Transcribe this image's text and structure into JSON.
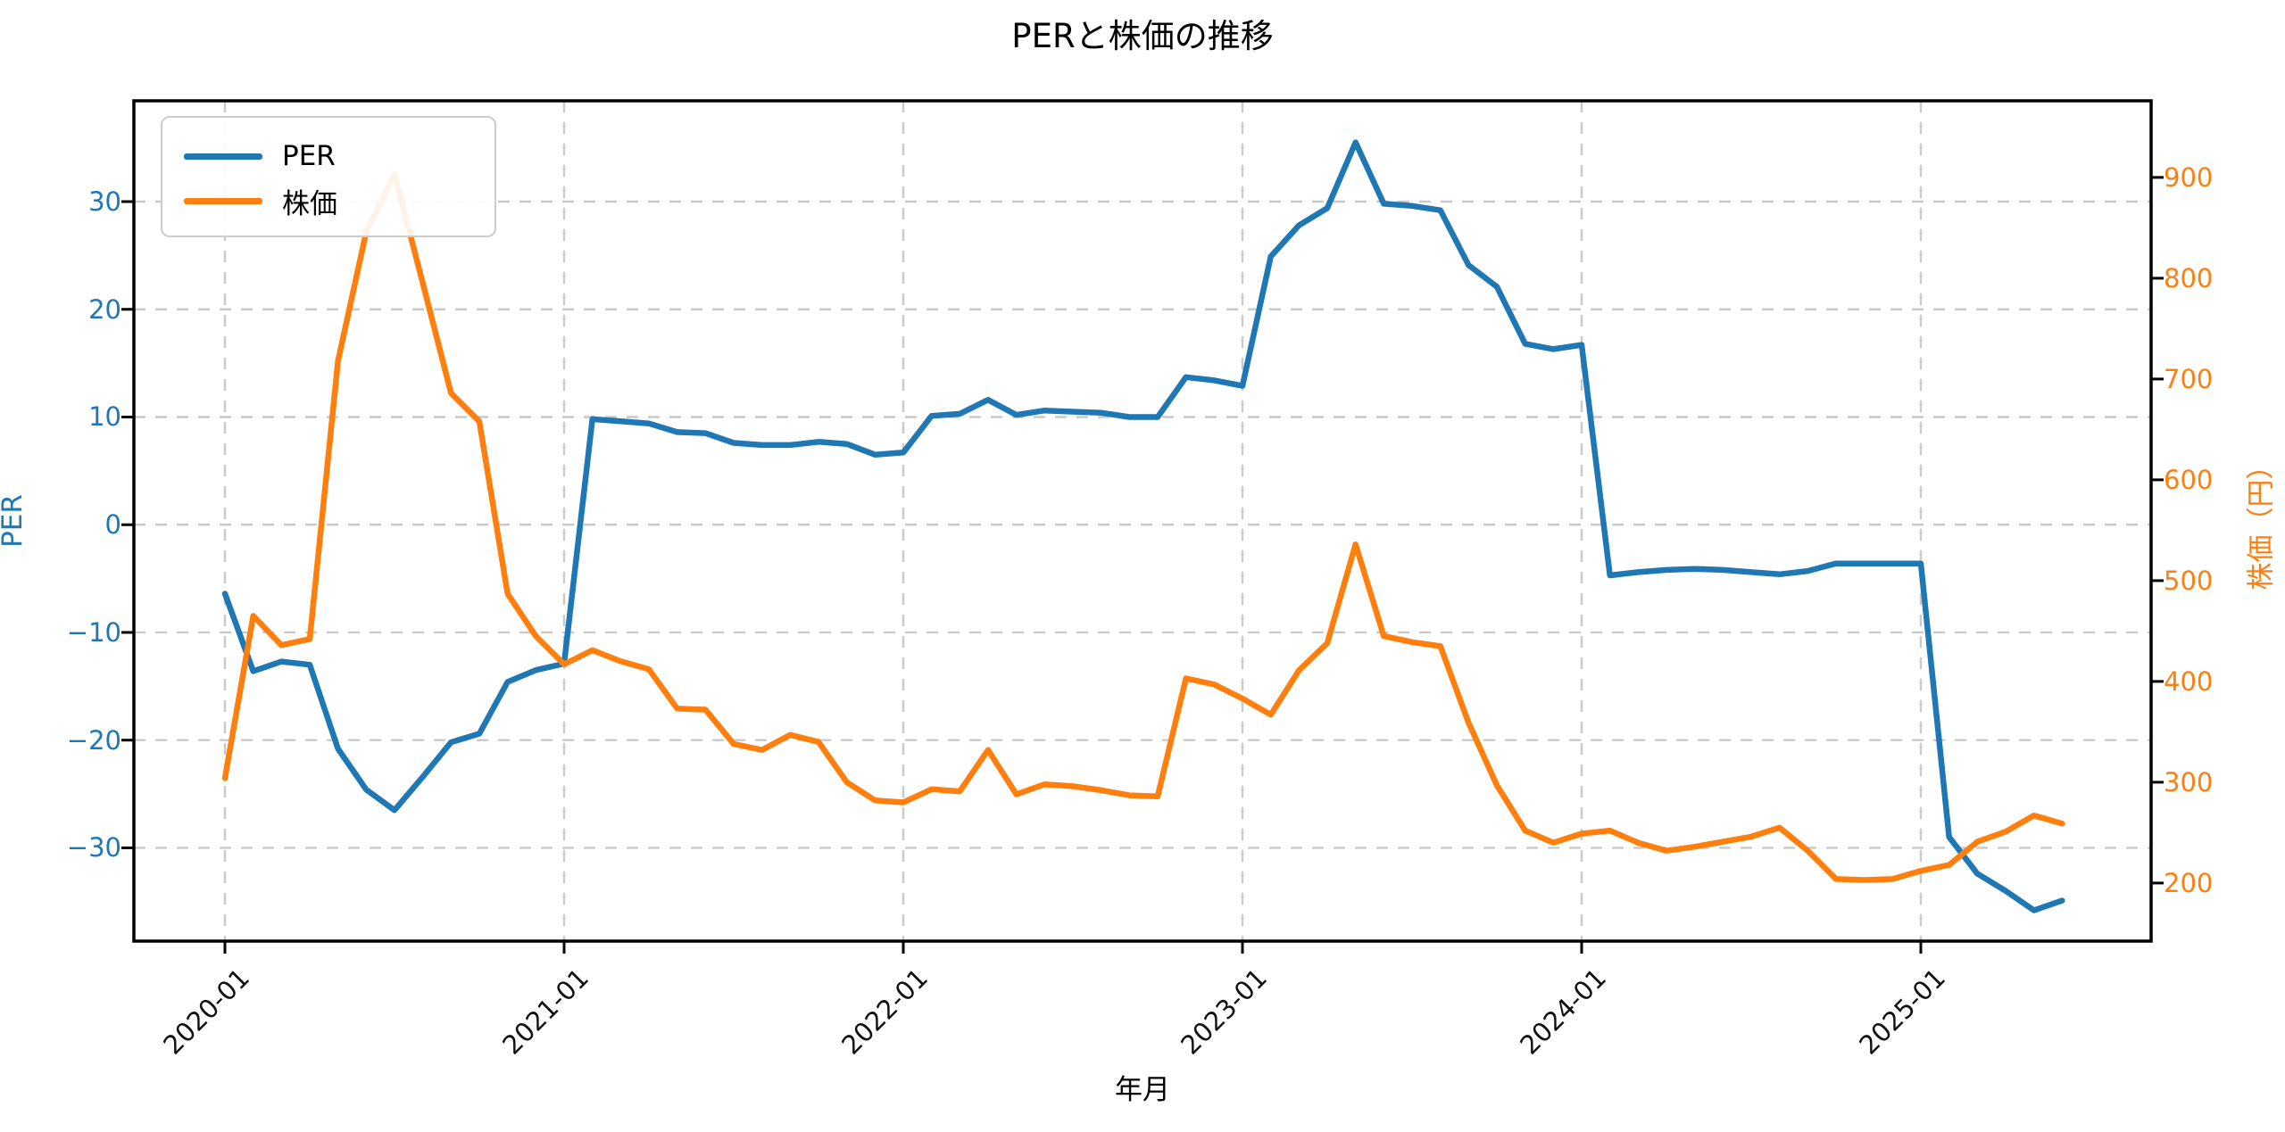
{
  "title": "PERと株価の推移",
  "xlabel": "年月",
  "ylabel_left": "PER",
  "ylabel_right": "株価（円）",
  "colors": {
    "per_line": "#1f77b4",
    "price_line": "#ff7f0e",
    "grid": "#c9c9c9",
    "spine": "#000000"
  },
  "legend": [
    {
      "label": "PER",
      "color": "#1f77b4"
    },
    {
      "label": "株価",
      "color": "#ff7f0e"
    }
  ],
  "axes": {
    "left_ticks": [
      {
        "label": "30",
        "value": 30
      },
      {
        "label": "20",
        "value": 20
      },
      {
        "label": "10",
        "value": 10
      },
      {
        "label": "0",
        "value": 0
      },
      {
        "label": "−10",
        "value": -10
      },
      {
        "label": "−20",
        "value": -20
      },
      {
        "label": "−30",
        "value": -30
      }
    ],
    "right_ticks": [
      {
        "label": "900",
        "value": 900
      },
      {
        "label": "800",
        "value": 800
      },
      {
        "label": "700",
        "value": 700
      },
      {
        "label": "600",
        "value": 600
      },
      {
        "label": "500",
        "value": 500
      },
      {
        "label": "400",
        "value": 400
      },
      {
        "label": "300",
        "value": 300
      },
      {
        "label": "200",
        "value": 200
      }
    ],
    "x_ticks": [
      {
        "label": "2020-01"
      },
      {
        "label": "2021-01"
      },
      {
        "label": "2022-01"
      },
      {
        "label": "2023-01"
      },
      {
        "label": "2024-01"
      },
      {
        "label": "2025-01"
      }
    ],
    "ylim_left": [
      -38.66,
      39.36
    ],
    "ylim_right": [
      142.4,
      976.0
    ],
    "grid": "dashed"
  },
  "chart_data": {
    "type": "line",
    "title": "PERと株価の推移",
    "xlabel": "年月",
    "ylabel_left": "PER",
    "ylabel_right": "株価（円）",
    "legend_position": "upper left",
    "x": [
      "2020-01",
      "2020-02",
      "2020-03",
      "2020-04",
      "2020-05",
      "2020-06",
      "2020-07",
      "2020-08",
      "2020-09",
      "2020-10",
      "2020-11",
      "2020-12",
      "2021-01",
      "2021-02",
      "2021-03",
      "2021-04",
      "2021-05",
      "2021-06",
      "2021-07",
      "2021-08",
      "2021-09",
      "2021-10",
      "2021-11",
      "2021-12",
      "2022-01",
      "2022-02",
      "2022-03",
      "2022-04",
      "2022-05",
      "2022-06",
      "2022-07",
      "2022-08",
      "2022-09",
      "2022-10",
      "2022-11",
      "2022-12",
      "2023-01",
      "2023-02",
      "2023-03",
      "2023-04",
      "2023-05",
      "2023-06",
      "2023-07",
      "2023-08",
      "2023-09",
      "2023-10",
      "2023-11",
      "2023-12",
      "2024-01",
      "2024-02",
      "2024-03",
      "2024-04",
      "2024-05",
      "2024-06",
      "2024-07",
      "2024-08",
      "2024-09",
      "2024-10",
      "2024-11",
      "2024-12",
      "2025-01",
      "2025-02",
      "2025-03",
      "2025-04",
      "2025-05",
      "2025-06"
    ],
    "series": [
      {
        "name": "PER",
        "axis": "left",
        "color": "#1f77b4",
        "values": [
          -6.4,
          -13.6,
          -12.7,
          -13.0,
          -20.8,
          -24.6,
          -26.5,
          -23.4,
          -20.2,
          -19.4,
          -14.6,
          -13.5,
          -12.9,
          9.8,
          9.6,
          9.4,
          8.6,
          8.5,
          7.6,
          7.4,
          7.4,
          7.7,
          7.5,
          6.5,
          6.7,
          10.1,
          10.3,
          11.6,
          10.2,
          10.6,
          10.5,
          10.4,
          10.0,
          10.0,
          13.7,
          13.4,
          12.9,
          24.9,
          27.8,
          29.4,
          35.5,
          29.8,
          29.6,
          29.2,
          24.1,
          22.1,
          16.8,
          16.3,
          16.7,
          -4.7,
          -4.4,
          -4.2,
          -4.1,
          -4.2,
          -4.4,
          -4.6,
          -4.3,
          -3.6,
          -3.6,
          -3.6,
          -3.6,
          -29.0,
          -32.4,
          -34.0,
          -35.8,
          -34.9
        ]
      },
      {
        "name": "株価",
        "axis": "right",
        "color": "#ff7f0e",
        "values": [
          304,
          465,
          436,
          442,
          718,
          846,
          903,
          795,
          686,
          658,
          487,
          445,
          417,
          431,
          420,
          412,
          373,
          372,
          338,
          332,
          347,
          340,
          300,
          282,
          280,
          293,
          291,
          332,
          288,
          298,
          296,
          292,
          287,
          286,
          403,
          397,
          383,
          367,
          411,
          438,
          536,
          445,
          439,
          435,
          359,
          297,
          252,
          240,
          249,
          252,
          240,
          232,
          236,
          241,
          246,
          255,
          232,
          204,
          203,
          204,
          212,
          218,
          241,
          251,
          267,
          259
        ]
      }
    ]
  }
}
